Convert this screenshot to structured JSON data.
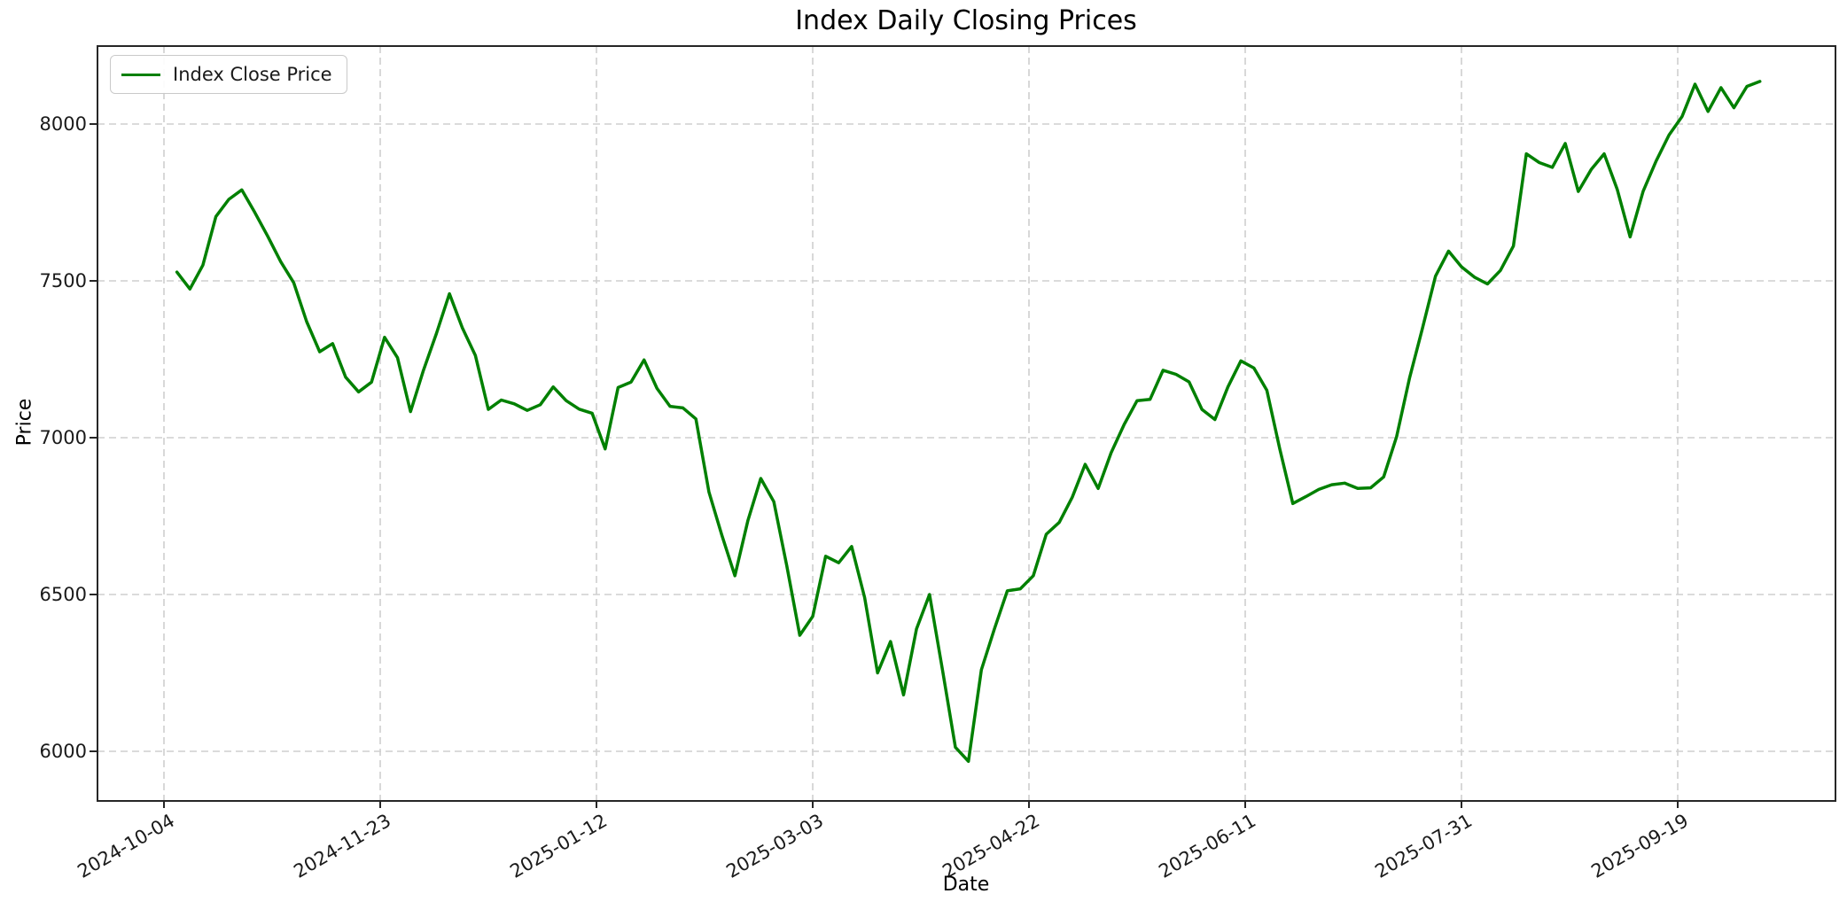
{
  "title": "Index Daily Closing Prices",
  "axes": {
    "xlabel": "Date",
    "ylabel": "Price"
  },
  "legend": {
    "label": "Index Close Price"
  },
  "colors": {
    "line": "#008000",
    "grid": "#cfcfcf",
    "frame": "#262626",
    "text": "#1a1a1a",
    "background": "#ffffff"
  },
  "chart_data": {
    "type": "line",
    "title": "Index Daily Closing Prices",
    "xlabel": "Date",
    "ylabel": "Price",
    "grid": true,
    "legend_position": "upper left",
    "x_ticks": [
      "2024-10-04",
      "2024-11-23",
      "2025-01-12",
      "2025-03-03",
      "2025-04-22",
      "2025-06-11",
      "2025-07-31",
      "2025-09-19"
    ],
    "y_ticks": [
      6000,
      6500,
      7000,
      7500,
      8000
    ],
    "ylim": [
      5845,
      8250
    ],
    "xlim": [
      "2024-09-19",
      "2025-10-25"
    ],
    "series": [
      {
        "name": "Index Close Price",
        "color": "#008000",
        "points": [
          [
            "2024-10-07",
            7528
          ],
          [
            "2024-10-10",
            7474
          ],
          [
            "2024-10-13",
            7550
          ],
          [
            "2024-10-16",
            7705
          ],
          [
            "2024-10-19",
            7760
          ],
          [
            "2024-10-22",
            7790
          ],
          [
            "2024-10-25",
            7718
          ],
          [
            "2024-10-28",
            7642
          ],
          [
            "2024-10-31",
            7561
          ],
          [
            "2024-11-03",
            7494
          ],
          [
            "2024-11-06",
            7370
          ],
          [
            "2024-11-09",
            7274
          ],
          [
            "2024-11-12",
            7300
          ],
          [
            "2024-11-15",
            7193
          ],
          [
            "2024-11-18",
            7146
          ],
          [
            "2024-11-21",
            7177
          ],
          [
            "2024-11-24",
            7320
          ],
          [
            "2024-11-27",
            7255
          ],
          [
            "2024-11-30",
            7083
          ],
          [
            "2024-12-03",
            7215
          ],
          [
            "2024-12-06",
            7332
          ],
          [
            "2024-12-09",
            7459
          ],
          [
            "2024-12-12",
            7350
          ],
          [
            "2024-12-15",
            7262
          ],
          [
            "2024-12-18",
            7090
          ],
          [
            "2024-12-21",
            7120
          ],
          [
            "2024-12-24",
            7108
          ],
          [
            "2024-12-27",
            7087
          ],
          [
            "2024-12-30",
            7105
          ],
          [
            "2025-01-02",
            7162
          ],
          [
            "2025-01-05",
            7118
          ],
          [
            "2025-01-08",
            7091
          ],
          [
            "2025-01-11",
            7078
          ],
          [
            "2025-01-14",
            6964
          ],
          [
            "2025-01-17",
            7160
          ],
          [
            "2025-01-20",
            7177
          ],
          [
            "2025-01-23",
            7248
          ],
          [
            "2025-01-26",
            7157
          ],
          [
            "2025-01-29",
            7100
          ],
          [
            "2025-02-01",
            7095
          ],
          [
            "2025-02-04",
            7060
          ],
          [
            "2025-02-07",
            6827
          ],
          [
            "2025-02-10",
            6689
          ],
          [
            "2025-02-13",
            6560
          ],
          [
            "2025-02-16",
            6735
          ],
          [
            "2025-02-19",
            6870
          ],
          [
            "2025-02-22",
            6796
          ],
          [
            "2025-02-25",
            6592
          ],
          [
            "2025-02-28",
            6370
          ],
          [
            "2025-03-03",
            6430
          ],
          [
            "2025-03-06",
            6622
          ],
          [
            "2025-03-09",
            6601
          ],
          [
            "2025-03-12",
            6653
          ],
          [
            "2025-03-15",
            6490
          ],
          [
            "2025-03-18",
            6250
          ],
          [
            "2025-03-21",
            6350
          ],
          [
            "2025-03-24",
            6180
          ],
          [
            "2025-03-27",
            6390
          ],
          [
            "2025-03-30",
            6500
          ],
          [
            "2025-04-02",
            6260
          ],
          [
            "2025-04-05",
            6013
          ],
          [
            "2025-04-08",
            5968
          ],
          [
            "2025-04-11",
            6260
          ],
          [
            "2025-04-14",
            6390
          ],
          [
            "2025-04-17",
            6512
          ],
          [
            "2025-04-20",
            6518
          ],
          [
            "2025-04-23",
            6560
          ],
          [
            "2025-04-26",
            6692
          ],
          [
            "2025-04-29",
            6730
          ],
          [
            "2025-05-02",
            6810
          ],
          [
            "2025-05-05",
            6915
          ],
          [
            "2025-05-08",
            6838
          ],
          [
            "2025-05-11",
            6952
          ],
          [
            "2025-05-14",
            7042
          ],
          [
            "2025-05-17",
            7118
          ],
          [
            "2025-05-20",
            7122
          ],
          [
            "2025-05-23",
            7215
          ],
          [
            "2025-05-26",
            7202
          ],
          [
            "2025-05-29",
            7178
          ],
          [
            "2025-06-01",
            7090
          ],
          [
            "2025-06-04",
            7058
          ],
          [
            "2025-06-07",
            7162
          ],
          [
            "2025-06-10",
            7245
          ],
          [
            "2025-06-13",
            7222
          ],
          [
            "2025-06-16",
            7151
          ],
          [
            "2025-06-19",
            6964
          ],
          [
            "2025-06-22",
            6790
          ],
          [
            "2025-06-25",
            6812
          ],
          [
            "2025-06-28",
            6835
          ],
          [
            "2025-07-01",
            6850
          ],
          [
            "2025-07-04",
            6855
          ],
          [
            "2025-07-07",
            6838
          ],
          [
            "2025-07-10",
            6840
          ],
          [
            "2025-07-13",
            6875
          ],
          [
            "2025-07-16",
            7003
          ],
          [
            "2025-07-19",
            7190
          ],
          [
            "2025-07-22",
            7350
          ],
          [
            "2025-07-25",
            7515
          ],
          [
            "2025-07-28",
            7595
          ],
          [
            "2025-07-31",
            7545
          ],
          [
            "2025-08-03",
            7512
          ],
          [
            "2025-08-06",
            7490
          ],
          [
            "2025-08-09",
            7533
          ],
          [
            "2025-08-12",
            7611
          ],
          [
            "2025-08-15",
            7905
          ],
          [
            "2025-08-18",
            7877
          ],
          [
            "2025-08-21",
            7862
          ],
          [
            "2025-08-24",
            7938
          ],
          [
            "2025-08-27",
            7785
          ],
          [
            "2025-08-30",
            7855
          ],
          [
            "2025-09-02",
            7905
          ],
          [
            "2025-09-05",
            7792
          ],
          [
            "2025-09-08",
            7640
          ],
          [
            "2025-09-11",
            7786
          ],
          [
            "2025-09-14",
            7882
          ],
          [
            "2025-09-17",
            7965
          ],
          [
            "2025-09-20",
            8024
          ],
          [
            "2025-09-23",
            8127
          ],
          [
            "2025-09-26",
            8040
          ],
          [
            "2025-09-29",
            8116
          ],
          [
            "2025-10-02",
            8052
          ],
          [
            "2025-10-05",
            8120
          ],
          [
            "2025-10-08",
            8136
          ]
        ]
      }
    ]
  }
}
